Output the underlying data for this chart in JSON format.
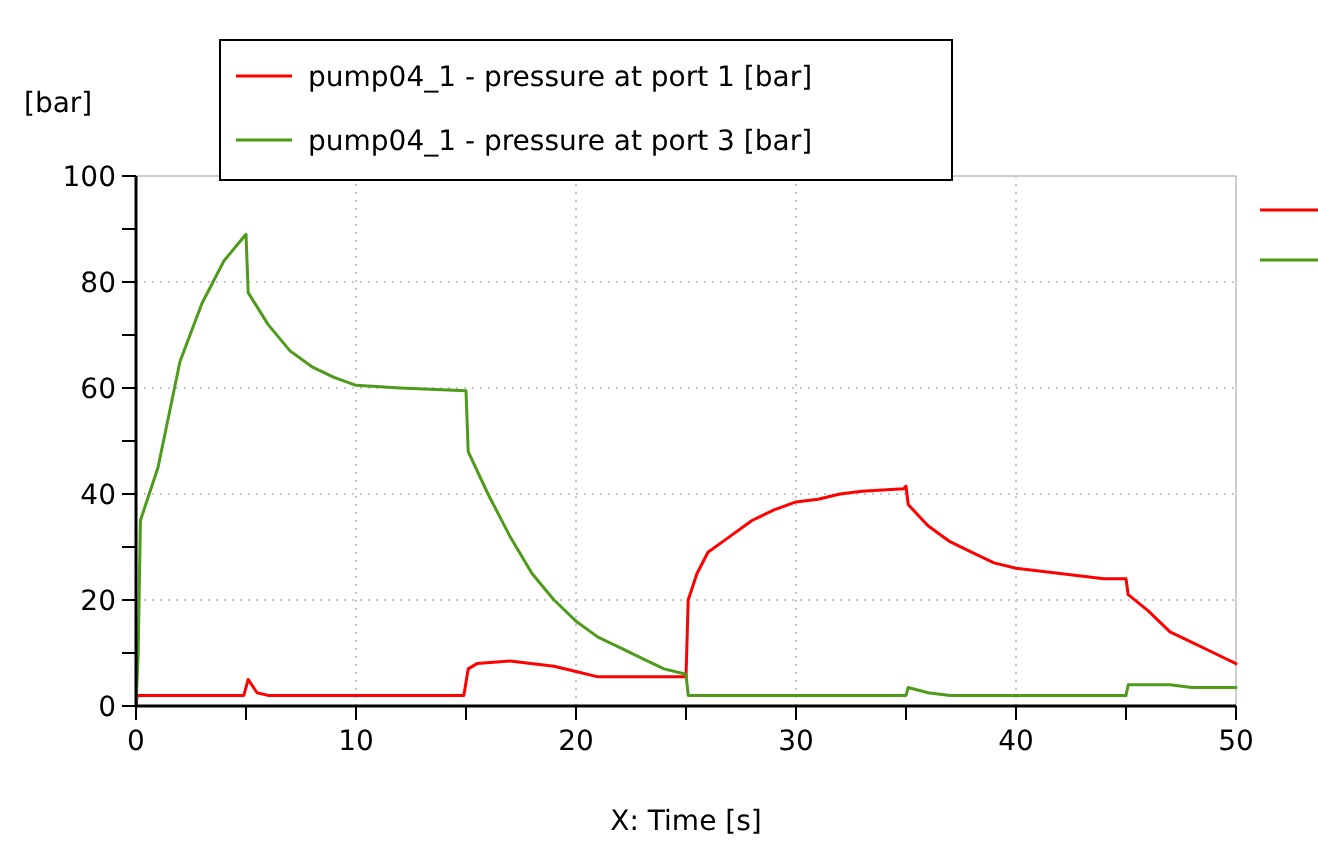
{
  "chart_data": {
    "type": "line",
    "ylabel": "[bar]",
    "xlabel": "X: Time [s]",
    "xlim": [
      0,
      50
    ],
    "ylim": [
      0,
      100
    ],
    "xticks": [
      0,
      {
        "value": 5,
        "label": null
      },
      10,
      {
        "value": 15,
        "label": null
      },
      20,
      {
        "value": 25,
        "label": null
      },
      30,
      {
        "value": 35,
        "label": null
      },
      40,
      {
        "value": 45,
        "label": null
      },
      50
    ],
    "yticks": [
      0,
      {
        "value": 10,
        "label": null
      },
      20,
      {
        "value": 30,
        "label": null
      },
      40,
      {
        "value": 50,
        "label": null
      },
      60,
      {
        "value": 70,
        "label": null
      },
      80,
      {
        "value": 90,
        "label": null
      },
      100
    ],
    "grid": true,
    "legend": "top",
    "marker": "none",
    "line_style": "solid",
    "series": [
      {
        "name": "pump04_1 - pressure at port 1 [bar]",
        "color": "#ff0000",
        "x": [
          0,
          0.05,
          4.9,
          5.1,
          5.5,
          6,
          14.9,
          15.1,
          15.5,
          17,
          19,
          20,
          21,
          25,
          25.1,
          25.5,
          26,
          27,
          28,
          29,
          30,
          31,
          32,
          33,
          34.9,
          35,
          35.1,
          36,
          37,
          38,
          39,
          40,
          42,
          44,
          45,
          45.1,
          46,
          47,
          48,
          49,
          50
        ],
        "values": [
          0,
          2,
          2,
          5,
          2.5,
          2,
          2,
          7,
          8,
          8.5,
          7.5,
          6.5,
          5.5,
          5.5,
          20,
          25,
          29,
          32,
          35,
          37,
          38.5,
          39,
          40,
          40.5,
          41,
          41.5,
          38,
          34,
          31,
          29,
          27,
          26,
          25,
          24,
          24,
          21,
          18,
          14,
          12,
          10,
          8
        ]
      },
      {
        "name": "pump04_1 - pressure at port 3 [bar]",
        "color": "#4e9a1a",
        "x": [
          0,
          0.1,
          0.2,
          1,
          1.5,
          2,
          3,
          4,
          5,
          5.1,
          6,
          7,
          8,
          9,
          10,
          12,
          15,
          15.1,
          16,
          17,
          18,
          19,
          20,
          21,
          22,
          23,
          24,
          25,
          25.1,
          35,
          35.1,
          36,
          37,
          45,
          45.1,
          47,
          48,
          50
        ],
        "values": [
          0,
          10,
          35,
          45,
          55,
          65,
          76,
          84,
          89,
          78,
          72,
          67,
          64,
          62,
          60.5,
          60,
          59.5,
          48,
          40,
          32,
          25,
          20,
          16,
          13,
          11,
          9,
          7,
          6,
          2,
          2,
          3.5,
          2.5,
          2,
          2,
          4,
          4,
          3.5,
          3.5
        ]
      }
    ]
  }
}
